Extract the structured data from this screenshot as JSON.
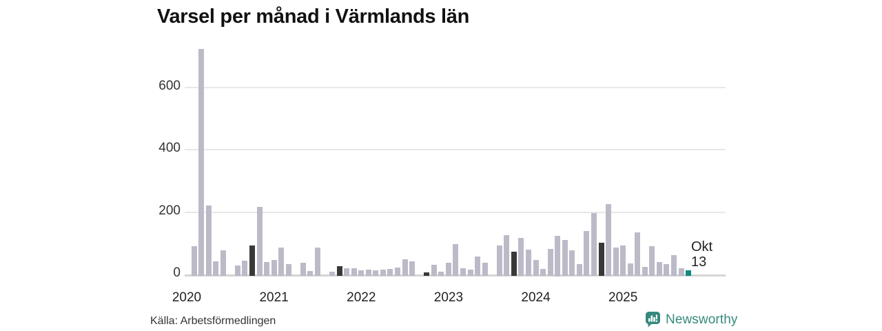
{
  "title": "Varsel per månad i Värmlands län",
  "source": "Källa: Arbetsförmedlingen",
  "brand": {
    "name": "Newsworthy",
    "color": "#35897d"
  },
  "annotation": {
    "month": "Okt",
    "value": "13"
  },
  "colors": {
    "bar": "#bdbac8",
    "bar_october_past": "#393939",
    "bar_current": "#0f8a7c",
    "gridline": "#e7e7e7",
    "axis_line": "#d5d5d5",
    "title_text": "#111111",
    "tick_text": "#333333",
    "annotation_text": "#222222"
  },
  "chart_data": {
    "type": "bar",
    "title": "Varsel per månad i Värmlands län",
    "xlabel": "",
    "ylabel": "",
    "x_start": "2020-01",
    "x_end": "2025-10",
    "frequency": "monthly",
    "values": [
      0,
      90,
      725,
      222,
      42,
      78,
      0,
      29,
      44,
      92,
      218,
      40,
      47,
      86,
      33,
      0,
      37,
      12,
      86,
      0,
      8,
      27,
      21,
      21,
      14,
      15,
      13,
      15,
      18,
      22,
      48,
      41,
      0,
      6,
      31,
      9,
      38,
      98,
      20,
      15,
      58,
      38,
      0,
      93,
      127,
      73,
      118,
      79,
      46,
      18,
      81,
      125,
      110,
      78,
      34,
      140,
      198,
      101,
      225,
      86,
      93,
      36,
      135,
      24,
      91,
      39,
      33,
      63,
      20,
      13
    ],
    "highlight_october_indices": [
      9,
      21,
      33,
      45,
      57
    ],
    "current_index": 69,
    "annotation": {
      "month": "Okt",
      "value": "13"
    },
    "yticks": [
      0,
      200,
      400,
      600
    ],
    "ylim": [
      0,
      740
    ],
    "year_labels": [
      "2020",
      "2021",
      "2022",
      "2023",
      "2024",
      "2025"
    ],
    "grid": "horizontal",
    "legend": "none",
    "source": "Källa: Arbetsförmedlingen"
  }
}
